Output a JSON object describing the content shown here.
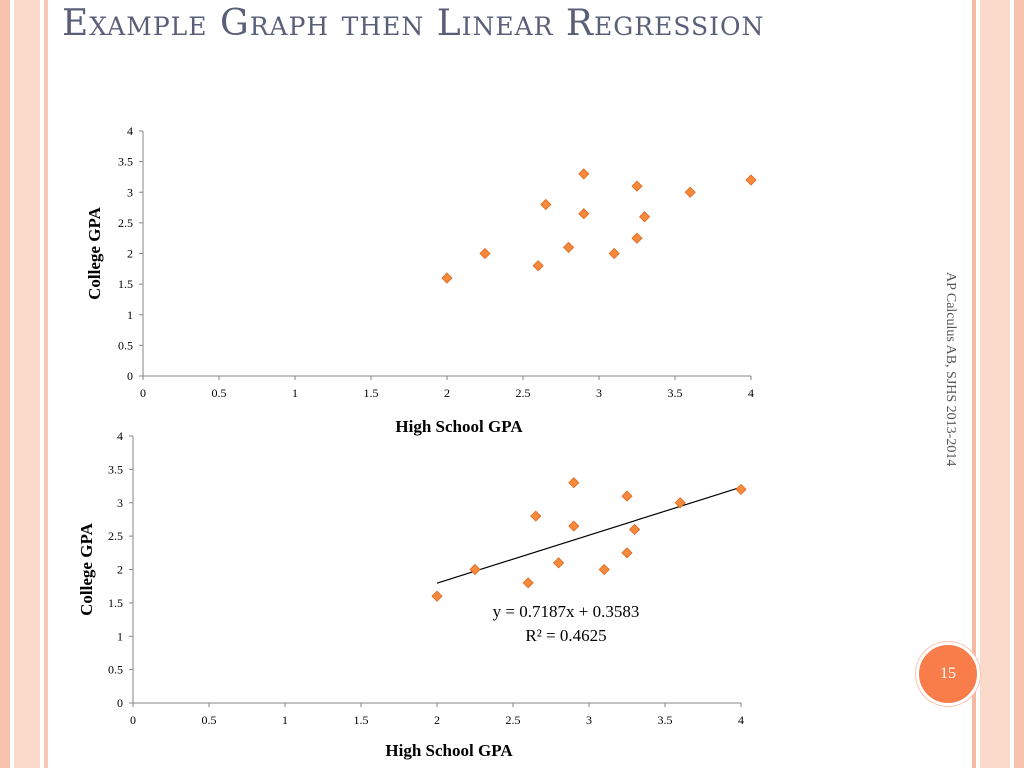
{
  "slide": {
    "title": "Example Graph then Linear Regression",
    "side_text": "AP Calculus AB, SJHS 2013-2014",
    "page_number": "15",
    "accent_color": "#f87d4b"
  },
  "chart_data": [
    {
      "type": "scatter",
      "title": "",
      "xlabel": "High School GPA",
      "ylabel": "College GPA",
      "xlim": [
        0,
        4
      ],
      "ylim": [
        0,
        4
      ],
      "xticks": [
        "0",
        "0.5",
        "1",
        "1.5",
        "2",
        "2.5",
        "3",
        "3.5",
        "4"
      ],
      "yticks": [
        "0",
        "0.5",
        "1",
        "1.5",
        "2",
        "2.5",
        "3",
        "3.5",
        "4"
      ],
      "marker": "diamond",
      "marker_color": "#f58a3c",
      "grid": false,
      "series": [
        {
          "x": [
            2.0,
            2.25,
            2.6,
            2.65,
            2.8,
            2.9,
            2.9,
            3.1,
            3.25,
            3.25,
            3.3,
            3.6,
            4.0
          ],
          "y": [
            1.6,
            2.0,
            1.8,
            2.8,
            2.1,
            3.3,
            2.65,
            2.0,
            3.1,
            2.25,
            2.6,
            3.0,
            3.2
          ]
        }
      ]
    },
    {
      "type": "scatter",
      "title": "",
      "xlabel": "High School GPA",
      "ylabel": "College GPA",
      "xlim": [
        0,
        4
      ],
      "ylim": [
        0,
        4
      ],
      "xticks": [
        "0",
        "0.5",
        "1",
        "1.5",
        "2",
        "2.5",
        "3",
        "3.5",
        "4"
      ],
      "yticks": [
        "0",
        "0.5",
        "1",
        "1.5",
        "2",
        "2.5",
        "3",
        "3.5",
        "4"
      ],
      "marker": "diamond",
      "marker_color": "#f58a3c",
      "grid": false,
      "series": [
        {
          "x": [
            2.0,
            2.25,
            2.6,
            2.65,
            2.8,
            2.9,
            2.9,
            3.1,
            3.25,
            3.25,
            3.3,
            3.6,
            4.0
          ],
          "y": [
            1.6,
            2.0,
            1.8,
            2.8,
            2.1,
            3.3,
            2.65,
            2.0,
            3.1,
            2.25,
            2.6,
            3.0,
            3.2
          ]
        }
      ],
      "trendline": {
        "slope": 0.7187,
        "intercept": 0.3583,
        "x_range": [
          2.0,
          4.0
        ],
        "equation_label": "y = 0.7187x + 0.3583",
        "r2_label": "R² = 0.4625"
      }
    }
  ]
}
